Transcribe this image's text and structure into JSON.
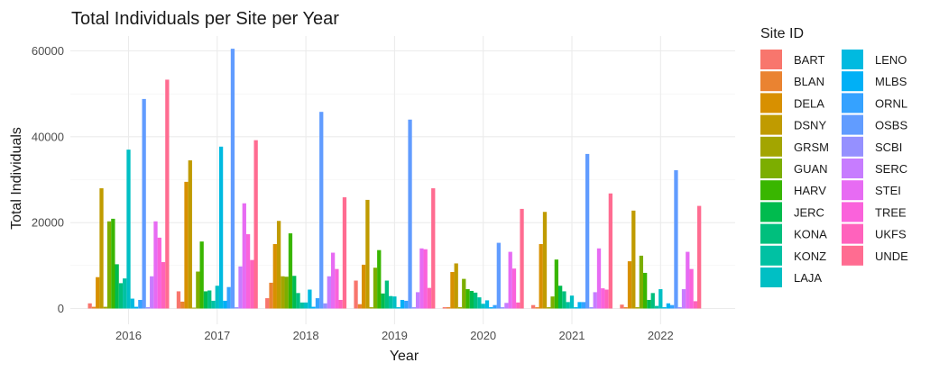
{
  "chart_data": {
    "type": "bar",
    "title": "Total Individuals per Site per Year",
    "xlabel": "Year",
    "ylabel": "Total Individuals",
    "ylim": [
      0,
      62000
    ],
    "yticks": [
      0,
      20000,
      40000,
      60000
    ],
    "grid": true,
    "legend_title": "Site ID",
    "legend_position": "right",
    "categories": [
      "2016",
      "2017",
      "2018",
      "2019",
      "2020",
      "2021",
      "2022"
    ],
    "series": [
      {
        "name": "BART",
        "color": "#F8766D",
        "values": [
          1200,
          4000,
          2400,
          6500,
          300,
          800,
          900
        ]
      },
      {
        "name": "BLAN",
        "color": "#EA8331",
        "values": [
          400,
          1600,
          6000,
          1000,
          300,
          300,
          300
        ]
      },
      {
        "name": "DELA",
        "color": "#D89000",
        "values": [
          7300,
          29500,
          15000,
          10200,
          8500,
          15000,
          11000
        ]
      },
      {
        "name": "DSNY",
        "color": "#C09B00",
        "values": [
          28000,
          34500,
          20400,
          25300,
          10500,
          22500,
          22800
        ]
      },
      {
        "name": "GRSM",
        "color": "#A3A500",
        "values": [
          400,
          200,
          7500,
          300,
          300,
          300,
          300
        ]
      },
      {
        "name": "GUAN",
        "color": "#7CAE00",
        "values": [
          20300,
          8600,
          7400,
          9500,
          6900,
          2800,
          12300
        ]
      },
      {
        "name": "HARV",
        "color": "#39B600",
        "values": [
          20900,
          15600,
          17500,
          13600,
          4500,
          11400,
          8300
        ]
      },
      {
        "name": "JERC",
        "color": "#00BB4E",
        "values": [
          10300,
          4000,
          7600,
          3500,
          4100,
          5300,
          2000
        ]
      },
      {
        "name": "KONA",
        "color": "#00BF7D",
        "values": [
          5900,
          4200,
          3600,
          6500,
          3700,
          4000,
          3600
        ]
      },
      {
        "name": "KONZ",
        "color": "#00C1A3",
        "values": [
          7000,
          1800,
          1400,
          2900,
          2600,
          1500,
          600
        ]
      },
      {
        "name": "LAJA",
        "color": "#00BFC4",
        "values": [
          37000,
          5300,
          1400,
          2800,
          1100,
          3000,
          4500
        ]
      },
      {
        "name": "LENO",
        "color": "#00BAE0",
        "values": [
          2300,
          37700,
          4400,
          300,
          1900,
          300,
          300
        ]
      },
      {
        "name": "MLBS",
        "color": "#00B0F6",
        "values": [
          400,
          1800,
          400,
          2000,
          300,
          1500,
          1200
        ]
      },
      {
        "name": "ORNL",
        "color": "#35A2FF",
        "values": [
          2000,
          5000,
          2400,
          1800,
          800,
          1500,
          800
        ]
      },
      {
        "name": "OSBS",
        "color": "#619CFF",
        "values": [
          48800,
          60500,
          45800,
          44000,
          15300,
          36000,
          32200
        ]
      },
      {
        "name": "SCBI",
        "color": "#9590FF",
        "values": [
          300,
          300,
          1200,
          300,
          300,
          300,
          300
        ]
      },
      {
        "name": "SERC",
        "color": "#C77CFF",
        "values": [
          7500,
          9800,
          7500,
          3800,
          1300,
          3800,
          4500
        ]
      },
      {
        "name": "STEI",
        "color": "#E76BF3",
        "values": [
          20300,
          24500,
          13000,
          14000,
          13200,
          14000,
          13200
        ]
      },
      {
        "name": "TREE",
        "color": "#FA62DB",
        "values": [
          16500,
          17300,
          9200,
          13800,
          9300,
          4700,
          9200
        ]
      },
      {
        "name": "UKFS",
        "color": "#FF62BC",
        "values": [
          10800,
          11300,
          2000,
          4800,
          1400,
          4400,
          1700
        ]
      },
      {
        "name": "UNDE",
        "color": "#FF6C91",
        "values": [
          53300,
          39200,
          25900,
          28000,
          23200,
          26800,
          23900
        ]
      }
    ]
  }
}
